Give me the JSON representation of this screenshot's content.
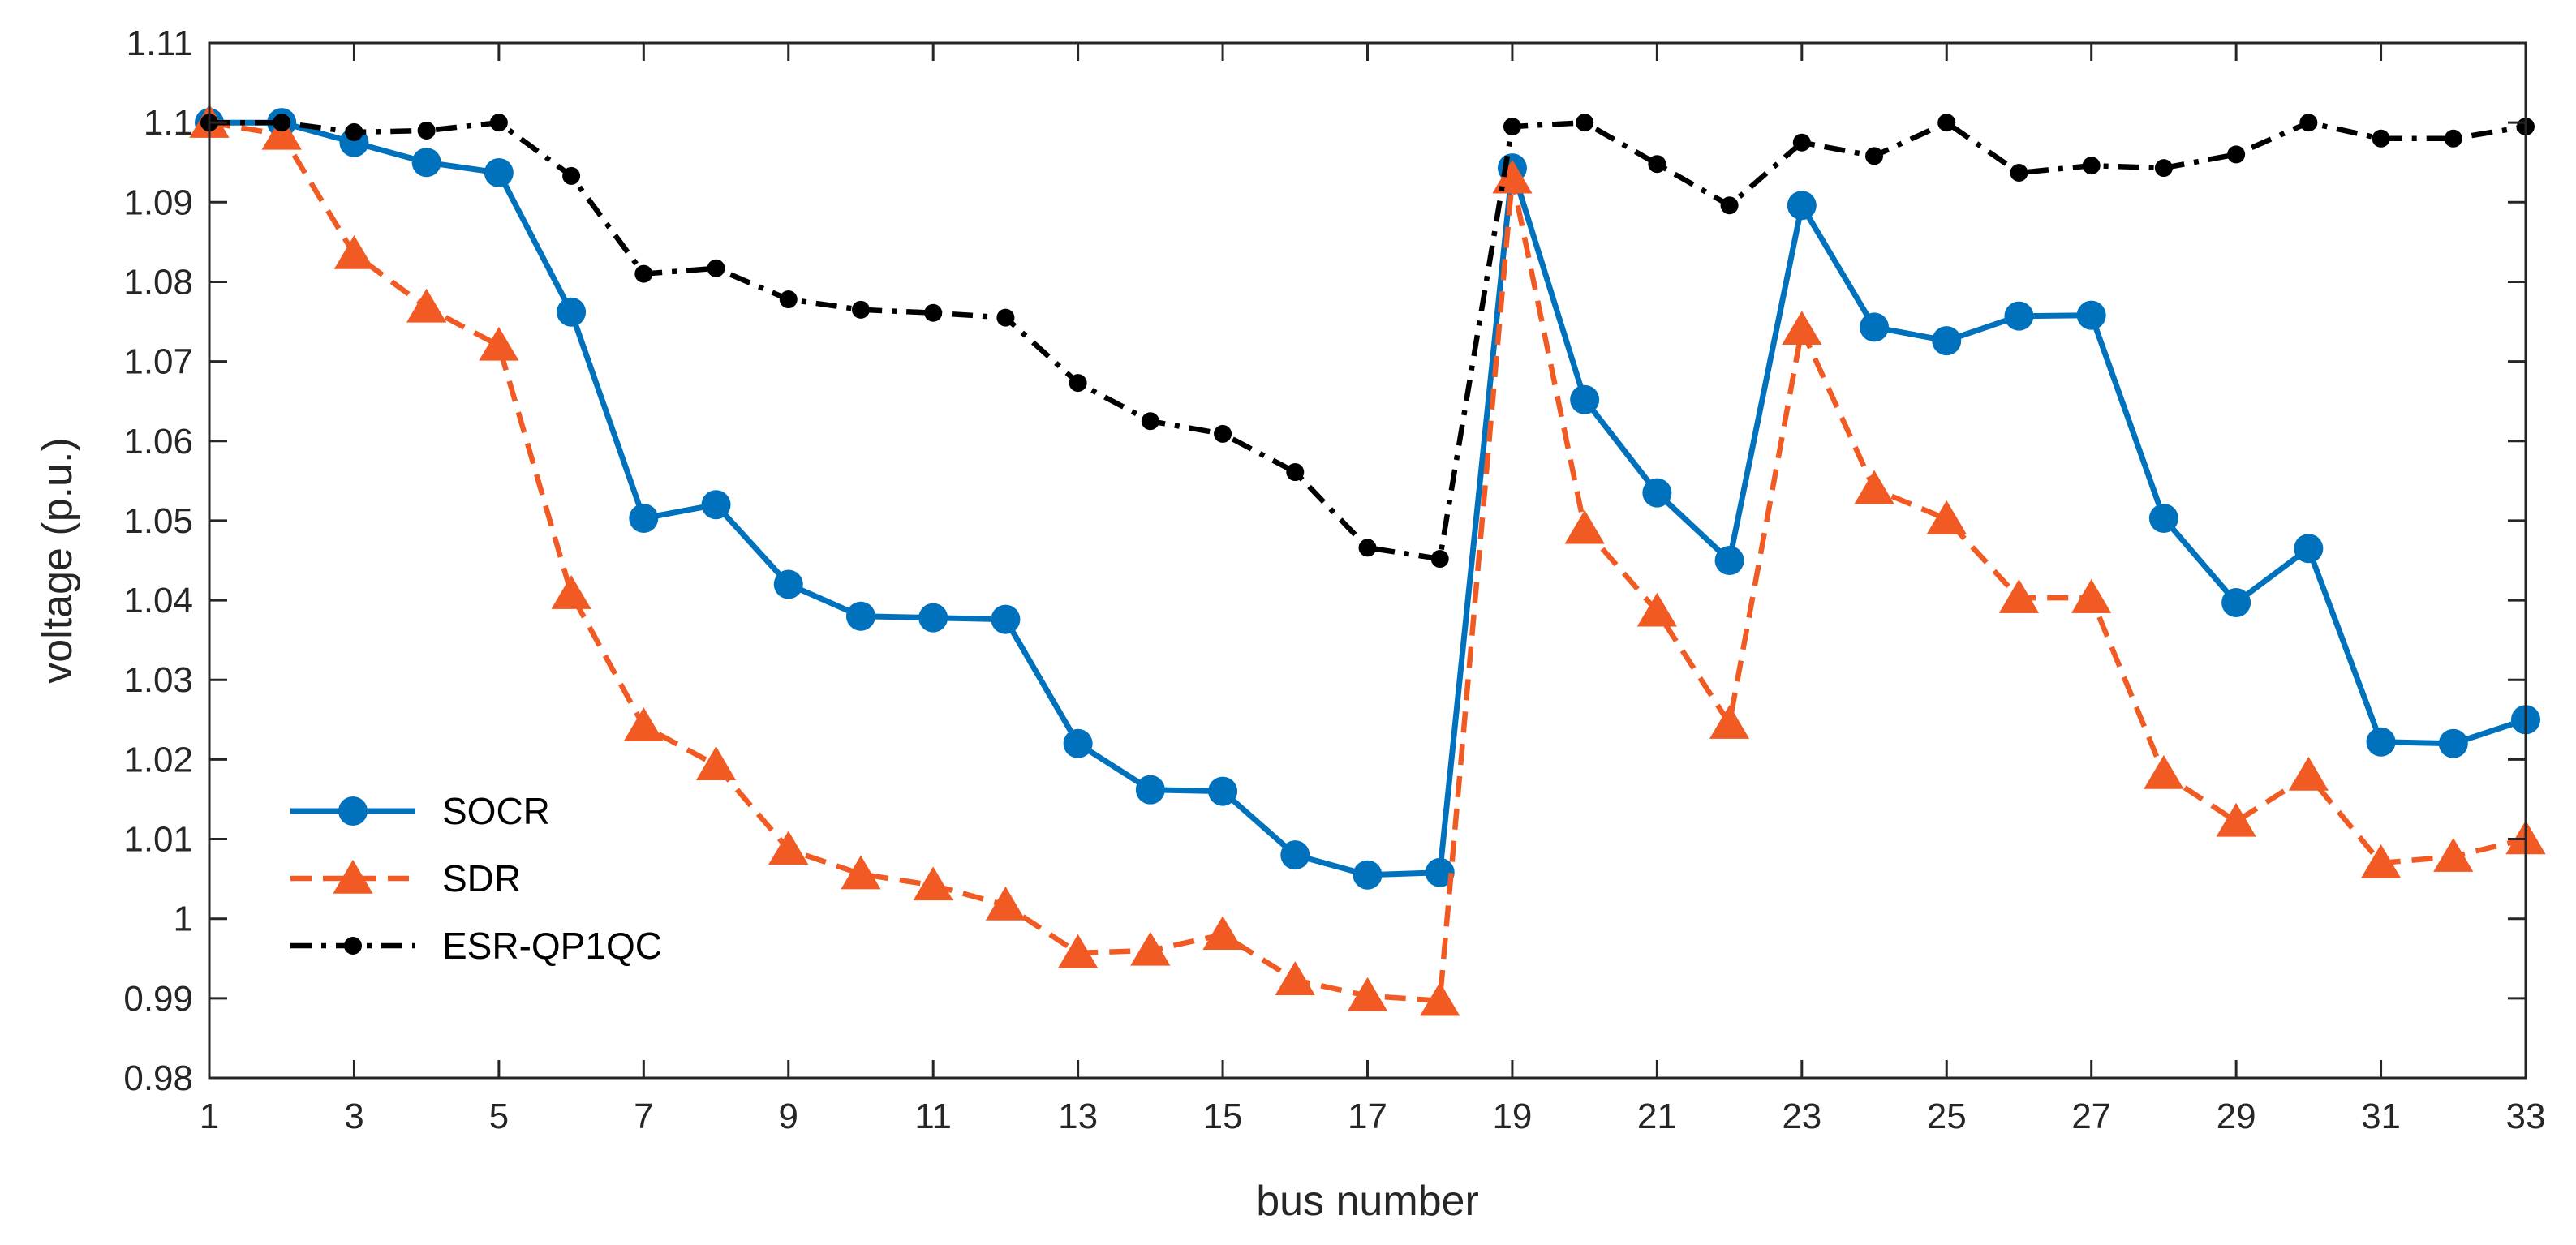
{
  "chart_data": {
    "type": "line",
    "title": "",
    "xlabel": "bus number",
    "ylabel": "voltage (p.u.)",
    "xlim": [
      1,
      33
    ],
    "ylim": [
      0.98,
      1.11
    ],
    "x_ticks": [
      1,
      3,
      5,
      7,
      9,
      11,
      13,
      15,
      17,
      19,
      21,
      23,
      25,
      27,
      29,
      31,
      33
    ],
    "y_ticks": [
      0.98,
      0.99,
      1,
      1.01,
      1.02,
      1.03,
      1.04,
      1.05,
      1.06,
      1.07,
      1.08,
      1.09,
      1.1,
      1.11
    ],
    "y_tick_labels": [
      "0.98",
      "0.99",
      "1",
      "1.01",
      "1.02",
      "1.03",
      "1.04",
      "1.05",
      "1.06",
      "1.07",
      "1.08",
      "1.09",
      "1.1",
      "1.11"
    ],
    "grid": false,
    "legend_position": "bottom-left",
    "x": [
      1,
      2,
      3,
      4,
      5,
      6,
      7,
      8,
      9,
      10,
      11,
      12,
      13,
      14,
      15,
      16,
      17,
      18,
      19,
      20,
      21,
      22,
      23,
      24,
      25,
      26,
      27,
      28,
      29,
      30,
      31,
      32,
      33
    ],
    "series": [
      {
        "name": "SOCR",
        "color": "#0072BD",
        "line_style": "solid",
        "marker": "circle",
        "values": [
          1.1,
          1.1,
          1.0975,
          1.095,
          1.0937,
          1.0762,
          1.0503,
          1.052,
          1.042,
          1.038,
          1.0378,
          1.0376,
          1.022,
          1.0162,
          1.016,
          1.008,
          1.0055,
          1.0058,
          1.0943,
          1.0652,
          1.0535,
          1.045,
          1.0896,
          1.0743,
          1.0726,
          1.0757,
          1.0758,
          1.0503,
          1.0397,
          1.0465,
          1.0222,
          1.022,
          1.025
        ]
      },
      {
        "name": "SDR",
        "color": "#F15A22",
        "line_style": "dashed",
        "marker": "triangle",
        "values": [
          1.1,
          1.0985,
          1.0835,
          1.0768,
          1.072,
          1.0408,
          1.0242,
          1.0193,
          1.0087,
          1.0056,
          1.0042,
          1.0017,
          0.9957,
          0.996,
          0.998,
          0.9923,
          0.9903,
          0.9897,
          1.093,
          1.049,
          1.0386,
          1.0245,
          1.074,
          1.054,
          1.0502,
          1.0403,
          1.0403,
          1.0182,
          1.0122,
          1.018,
          1.007,
          1.0078,
          1.01
        ]
      },
      {
        "name": "ESR-QP1QC",
        "color": "#000000",
        "line_style": "dashdot",
        "marker": "dot",
        "values": [
          1.1,
          1.1,
          1.0988,
          1.099,
          1.1,
          1.0933,
          1.081,
          1.0817,
          1.0778,
          1.0765,
          1.0761,
          1.0755,
          1.0673,
          1.0625,
          1.0609,
          1.0561,
          1.0466,
          1.0452,
          1.0995,
          1.1,
          1.0948,
          1.0896,
          1.0975,
          1.0958,
          1.1,
          1.0937,
          1.0946,
          1.0943,
          1.096,
          1.1,
          1.098,
          1.098,
          1.0995
        ]
      }
    ]
  }
}
